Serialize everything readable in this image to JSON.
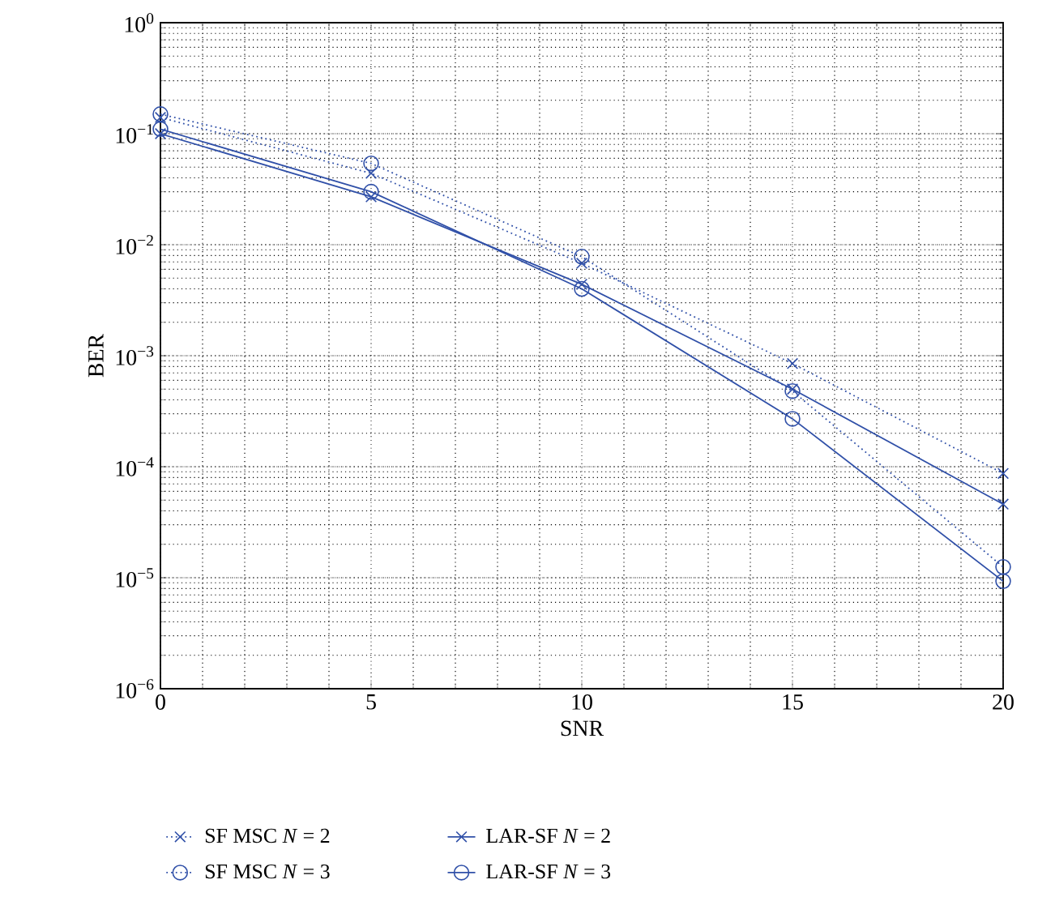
{
  "chart_data": {
    "type": "line",
    "xlabel": "SNR",
    "ylabel": "BER",
    "log": "y",
    "grid": true,
    "legend": "bottom",
    "x": [
      0,
      5,
      10,
      15,
      20
    ],
    "xlim": [
      0,
      20
    ],
    "xticks": [
      0,
      5,
      10,
      15,
      20
    ],
    "ylim": [
      1e-06,
      1
    ],
    "yticks": [
      {
        "value": 1e-06,
        "label": "10$^{−6}$"
      },
      {
        "value": 1e-05,
        "label": "10$^{−5}$"
      },
      {
        "value": 0.0001,
        "label": "10$^{−4}$"
      },
      {
        "value": 0.001,
        "label": "10$^{−3}$"
      },
      {
        "value": 0.01,
        "label": "10$^{−2}$"
      },
      {
        "value": 0.1,
        "label": "10$^{−1}$"
      },
      {
        "value": 1,
        "label": "10$^{0}$"
      }
    ],
    "series": [
      {
        "name": "SF MSC *N* = 2",
        "color": "#3050a8",
        "marker": "cross",
        "line_style": "dotted",
        "values": [
          0.14,
          0.044,
          0.0068,
          0.00085,
          8.7e-05
        ]
      },
      {
        "name": "SF MSC *N* = 3",
        "color": "#3050a8",
        "marker": "circle",
        "line_style": "dotted",
        "values": [
          0.15,
          0.054,
          0.0078,
          0.00048,
          1.25e-05
        ]
      },
      {
        "name": "LAR-SF *N* = 2",
        "color": "#3050a8",
        "marker": "cross",
        "line_style": "solid",
        "values": [
          0.1,
          0.027,
          0.0044,
          0.0005,
          4.6e-05
        ]
      },
      {
        "name": "LAR-SF *N* = 3",
        "color": "#3050a8",
        "marker": "circle",
        "line_style": "solid",
        "values": [
          0.11,
          0.03,
          0.004,
          0.00027,
          9.3e-06
        ]
      }
    ]
  }
}
